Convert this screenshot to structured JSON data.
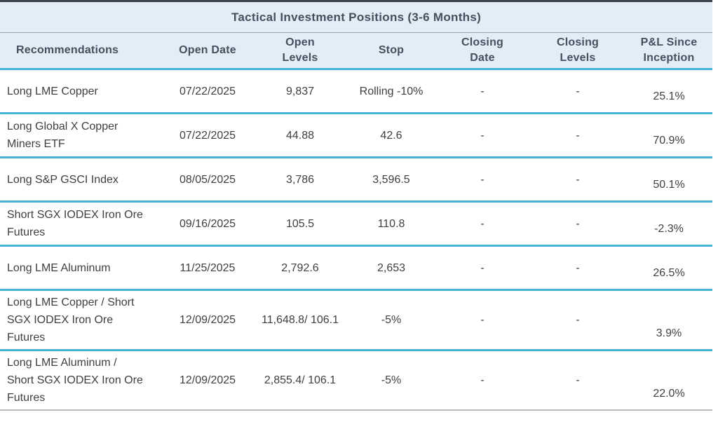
{
  "chart_data": {
    "type": "table",
    "title": "Tactical Investment Positions (3-6 Months)",
    "columns": [
      {
        "id": "recommendation",
        "lines": [
          "Recommendations"
        ]
      },
      {
        "id": "open_date",
        "lines": [
          "Open Date"
        ]
      },
      {
        "id": "open_levels",
        "lines": [
          "Open",
          "Levels"
        ]
      },
      {
        "id": "stop",
        "lines": [
          "Stop"
        ]
      },
      {
        "id": "closing_date",
        "lines": [
          "Closing",
          "Date"
        ]
      },
      {
        "id": "closing_levels",
        "lines": [
          "Closing",
          "Levels"
        ]
      },
      {
        "id": "pnl",
        "lines": [
          "P&L Since",
          "Inception"
        ]
      }
    ],
    "rows": [
      {
        "recommendation": "Long LME Copper",
        "open_date": "07/22/2025",
        "open_levels": "9,837",
        "stop": "Rolling -10%",
        "closing_date": "-",
        "closing_levels": "-",
        "pnl": "25.1%"
      },
      {
        "recommendation": "Long Global X Copper Miners ETF",
        "open_date": "07/22/2025",
        "open_levels": "44.88",
        "stop": "42.6",
        "closing_date": "-",
        "closing_levels": "-",
        "pnl": "70.9%"
      },
      {
        "recommendation": "Long S&P GSCI Index",
        "open_date": "08/05/2025",
        "open_levels": "3,786",
        "stop": "3,596.5",
        "closing_date": "-",
        "closing_levels": "-",
        "pnl": "50.1%"
      },
      {
        "recommendation": "Short SGX IODEX Iron Ore Futures",
        "open_date": "09/16/2025",
        "open_levels": "105.5",
        "stop": "110.8",
        "closing_date": "-",
        "closing_levels": "-",
        "pnl": "-2.3%"
      },
      {
        "recommendation": "Long LME Aluminum",
        "open_date": "11/25/2025",
        "open_levels": "2,792.6",
        "stop": "2,653",
        "closing_date": "-",
        "closing_levels": "-",
        "pnl": "26.5%"
      },
      {
        "recommendation": "Long LME Copper / Short SGX IODEX Iron Ore Futures",
        "open_date": "12/09/2025",
        "open_levels": "11,648.8/ 106.1",
        "stop": "-5%",
        "closing_date": "-",
        "closing_levels": "-",
        "pnl": "3.9%"
      },
      {
        "recommendation": "Long LME Aluminum / Short SGX IODEX Iron Ore Futures",
        "open_date": "12/09/2025",
        "open_levels": "2,855.4/ 106.1",
        "stop": "-5%",
        "closing_date": "-",
        "closing_levels": "-",
        "pnl": "22.0%"
      }
    ]
  },
  "colors": {
    "accent_cyan": "#45b2d6",
    "band_bg": "#e3edf8",
    "top_border": "#3b4249",
    "title_underline": "#9aa0a6",
    "bottom_line": "#b9bcbf",
    "header_text": "#44505c",
    "body_text": "#3d3f41"
  }
}
